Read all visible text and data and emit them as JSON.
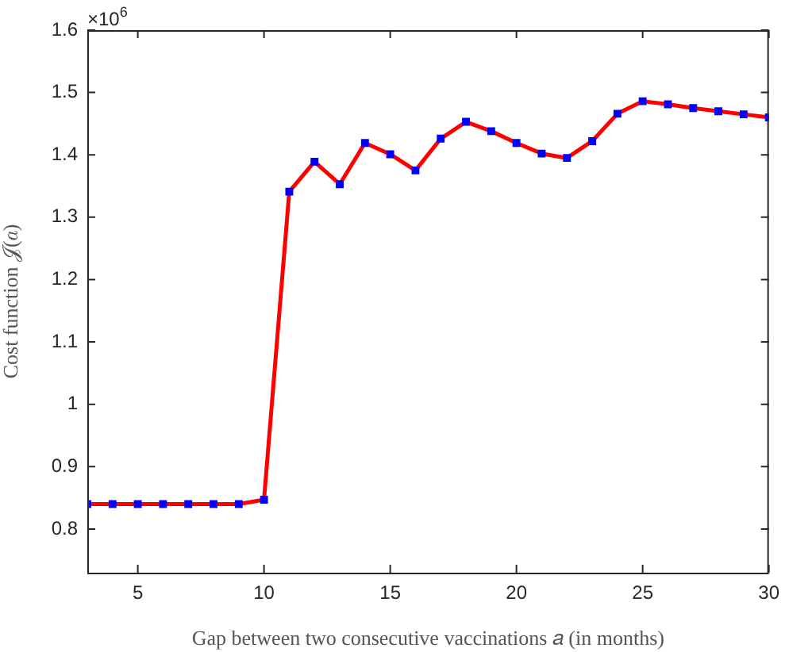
{
  "chart_data": {
    "type": "line",
    "xlabel": "Gap between two consecutive vaccinations 𝑎 (in months)",
    "ylabel": "Cost function 𝒥(𝑎)",
    "annotations": [
      "×10$^{6}$"
    ],
    "x": [
      3,
      4,
      5,
      6,
      7,
      8,
      9,
      10,
      11,
      12,
      13,
      14,
      15,
      16,
      17,
      18,
      19,
      20,
      21,
      22,
      23,
      24,
      25,
      26,
      27,
      28,
      29,
      30
    ],
    "series": [
      {
        "color": "#ff0000",
        "colors": [
          "#0000ff",
          "#0000ff",
          "#0000ff",
          "#0000ff",
          "#0000ff",
          "#0000ff",
          "#0000ff",
          "#0000ff",
          "#0000ff",
          "#0000ff",
          "#0000ff",
          "#0000ff",
          "#0000ff",
          "#0000ff",
          "#0000ff",
          "#0000ff",
          "#0000ff",
          "#0000ff",
          "#0000ff",
          "#0000ff",
          "#0000ff",
          "#0000ff",
          "#0000ff",
          "#0000ff",
          "#0000ff",
          "#0000ff",
          "#0000ff",
          "#0000ff"
        ],
        "values": [
          0.84,
          0.84,
          0.84,
          0.84,
          0.84,
          0.84,
          0.84,
          0.847,
          1.341,
          1.389,
          1.353,
          1.419,
          1.401,
          1.375,
          1.426,
          1.453,
          1.438,
          1.419,
          1.402,
          1.395,
          1.422,
          1.466,
          1.486,
          1.481,
          1.475,
          1.47,
          1.465,
          1.46
        ]
      }
    ],
    "xlim": [
      3,
      30
    ],
    "xticks": [
      5,
      10,
      15,
      20,
      25,
      30
    ],
    "ylim": [
      0.73,
      1.6
    ],
    "yticks": [
      0.8,
      0.9,
      1,
      1.1,
      1.2,
      1.3,
      1.4,
      1.5,
      1.6
    ],
    "grid": false,
    "legend": false,
    "marker": "square",
    "line_style": "solid"
  }
}
